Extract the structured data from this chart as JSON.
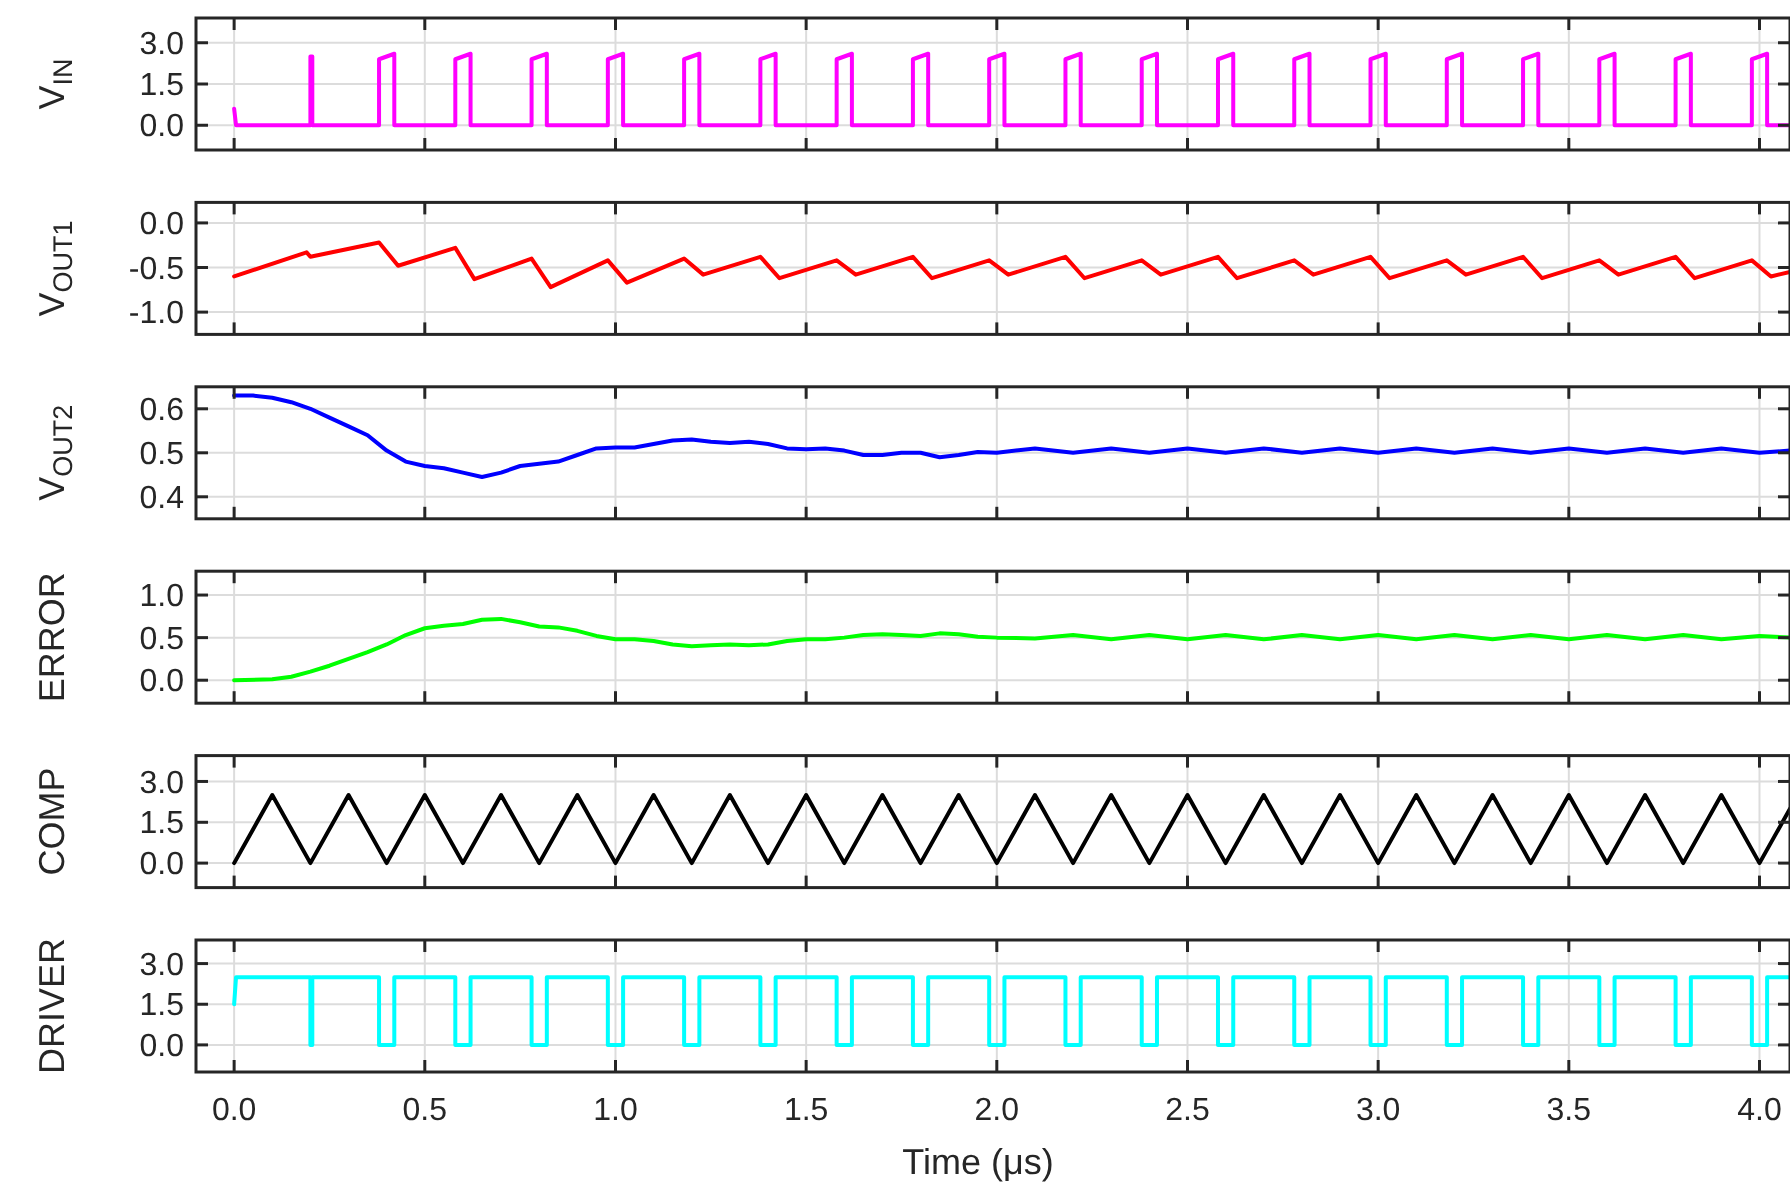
{
  "chart_data": [
    {
      "type": "line",
      "ylabel": "V$_{IN}$",
      "grid": true,
      "tick_labels": "y",
      "xlim": [
        -0.1,
        4.08
      ],
      "ylim": [
        -0.9,
        3.9
      ],
      "xticks": [
        {
          "value": 0,
          "label": null
        },
        {
          "value": 0.5,
          "label": null
        },
        {
          "value": 1,
          "label": null
        },
        {
          "value": 1.5,
          "label": null
        },
        {
          "value": 2,
          "label": null
        },
        {
          "value": 2.5,
          "label": null
        },
        {
          "value": 3,
          "label": null
        },
        {
          "value": 3.5,
          "label": null
        },
        {
          "value": 4,
          "label": null
        }
      ],
      "yticks": [
        {
          "value": 0,
          "label": "0.0"
        },
        1.5,
        {
          "value": 3,
          "label": "3.0"
        }
      ],
      "series": [
        {
          "color": "#ff00ff",
          "x": [
            0,
            0.005,
            0.2,
            0.2,
            0.205,
            0.205,
            0.38,
            0.38,
            0.42,
            0.42,
            0.58,
            0.58,
            0.62,
            0.62,
            0.78,
            0.78,
            0.82,
            0.82,
            0.98,
            0.98,
            1.02,
            1.02,
            1.18,
            1.18,
            1.22,
            1.22,
            1.38,
            1.38,
            1.42,
            1.42,
            1.58,
            1.58,
            1.62,
            1.62,
            1.78,
            1.78,
            1.82,
            1.82,
            1.98,
            1.98,
            2.02,
            2.02,
            2.18,
            2.18,
            2.22,
            2.22,
            2.38,
            2.38,
            2.42,
            2.42,
            2.58,
            2.58,
            2.62,
            2.62,
            2.78,
            2.78,
            2.82,
            2.82,
            2.98,
            2.98,
            3.02,
            3.02,
            3.18,
            3.18,
            3.22,
            3.22,
            3.38,
            3.38,
            3.42,
            3.42,
            3.58,
            3.58,
            3.62,
            3.62,
            3.78,
            3.78,
            3.82,
            3.82,
            3.98,
            3.98,
            4.02,
            4.02,
            4.08
          ],
          "values": [
            0.6,
            0,
            0,
            2.5,
            2.5,
            0,
            0,
            2.4,
            2.6,
            0,
            0,
            2.4,
            2.6,
            0,
            0,
            2.4,
            2.6,
            0,
            0,
            2.4,
            2.6,
            0,
            0,
            2.4,
            2.6,
            0,
            0,
            2.4,
            2.6,
            0,
            0,
            2.4,
            2.6,
            0,
            0,
            2.4,
            2.6,
            0,
            0,
            2.4,
            2.6,
            0,
            0,
            2.4,
            2.6,
            0,
            0,
            2.4,
            2.6,
            0,
            0,
            2.4,
            2.6,
            0,
            0,
            2.4,
            2.6,
            0,
            0,
            2.4,
            2.6,
            0,
            0,
            2.4,
            2.6,
            0,
            0,
            2.4,
            2.6,
            0,
            0,
            2.4,
            2.6,
            0,
            0,
            2.4,
            2.6,
            0,
            0,
            2.4,
            2.6,
            0,
            0
          ]
        }
      ]
    },
    {
      "type": "line",
      "ylabel": "V$_{OUT1}$",
      "grid": true,
      "tick_labels": "y",
      "xlim": [
        -0.1,
        4.08
      ],
      "ylim": [
        -1.25,
        0.23
      ],
      "xticks": [
        {
          "value": 0,
          "label": null
        },
        {
          "value": 0.5,
          "label": null
        },
        {
          "value": 1,
          "label": null
        },
        {
          "value": 1.5,
          "label": null
        },
        {
          "value": 2,
          "label": null
        },
        {
          "value": 2.5,
          "label": null
        },
        {
          "value": 3,
          "label": null
        },
        {
          "value": 3.5,
          "label": null
        },
        {
          "value": 4,
          "label": null
        }
      ],
      "yticks": [
        {
          "value": -1,
          "label": "-1.0"
        },
        -0.5,
        {
          "value": 0,
          "label": "0.0"
        }
      ],
      "series": [
        {
          "color": "#ff0000",
          "x": [
            0,
            0.19,
            0.2,
            0.38,
            0.43,
            0.58,
            0.63,
            0.78,
            0.83,
            0.98,
            1.03,
            1.18,
            1.23,
            1.38,
            1.43,
            1.58,
            1.63,
            1.78,
            1.83,
            1.98,
            2.03,
            2.18,
            2.23,
            2.38,
            2.43,
            2.58,
            2.63,
            2.78,
            2.83,
            2.98,
            3.03,
            3.18,
            3.23,
            3.38,
            3.43,
            3.58,
            3.63,
            3.78,
            3.83,
            3.98,
            4.03,
            4.08
          ],
          "values": [
            -0.6,
            -0.33,
            -0.38,
            -0.22,
            -0.48,
            -0.28,
            -0.63,
            -0.4,
            -0.72,
            -0.42,
            -0.67,
            -0.4,
            -0.58,
            -0.38,
            -0.62,
            -0.42,
            -0.58,
            -0.38,
            -0.62,
            -0.42,
            -0.58,
            -0.38,
            -0.62,
            -0.42,
            -0.58,
            -0.38,
            -0.62,
            -0.42,
            -0.58,
            -0.38,
            -0.62,
            -0.42,
            -0.58,
            -0.38,
            -0.62,
            -0.42,
            -0.58,
            -0.38,
            -0.62,
            -0.42,
            -0.6,
            -0.55
          ]
        }
      ]
    },
    {
      "type": "line",
      "ylabel": "V$_{OUT2}$",
      "grid": true,
      "tick_labels": "y",
      "xlim": [
        -0.1,
        4.08
      ],
      "ylim": [
        0.35,
        0.65
      ],
      "xticks": [
        {
          "value": 0,
          "label": null
        },
        {
          "value": 0.5,
          "label": null
        },
        {
          "value": 1,
          "label": null
        },
        {
          "value": 1.5,
          "label": null
        },
        {
          "value": 2,
          "label": null
        },
        {
          "value": 2.5,
          "label": null
        },
        {
          "value": 3,
          "label": null
        },
        {
          "value": 3.5,
          "label": null
        },
        {
          "value": 4,
          "label": null
        }
      ],
      "yticks": [
        0.4,
        0.5,
        0.6
      ],
      "series": [
        {
          "color": "#0000ff",
          "x": [
            0,
            0.05,
            0.1,
            0.15,
            0.2,
            0.25,
            0.3,
            0.35,
            0.4,
            0.45,
            0.5,
            0.55,
            0.6,
            0.65,
            0.7,
            0.75,
            0.8,
            0.85,
            0.9,
            0.95,
            1,
            1.05,
            1.1,
            1.15,
            1.2,
            1.25,
            1.3,
            1.35,
            1.4,
            1.45,
            1.5,
            1.55,
            1.6,
            1.65,
            1.7,
            1.75,
            1.8,
            1.85,
            1.9,
            1.95,
            2,
            2.1,
            2.2,
            2.3,
            2.4,
            2.5,
            2.6,
            2.7,
            2.8,
            2.9,
            3,
            3.1,
            3.2,
            3.3,
            3.4,
            3.5,
            3.6,
            3.7,
            3.8,
            3.9,
            4,
            4.08
          ],
          "values": [
            0.63,
            0.63,
            0.625,
            0.615,
            0.6,
            0.58,
            0.56,
            0.54,
            0.505,
            0.48,
            0.47,
            0.465,
            0.455,
            0.445,
            0.455,
            0.47,
            0.475,
            0.48,
            0.495,
            0.51,
            0.512,
            0.512,
            0.52,
            0.528,
            0.53,
            0.525,
            0.522,
            0.525,
            0.52,
            0.51,
            0.508,
            0.51,
            0.505,
            0.495,
            0.495,
            0.5,
            0.5,
            0.49,
            0.495,
            0.502,
            0.5,
            0.51,
            0.5,
            0.51,
            0.5,
            0.51,
            0.5,
            0.51,
            0.5,
            0.51,
            0.5,
            0.51,
            0.5,
            0.51,
            0.5,
            0.51,
            0.5,
            0.51,
            0.5,
            0.51,
            0.5,
            0.505
          ]
        }
      ]
    },
    {
      "type": "line",
      "ylabel": "ERROR",
      "grid": true,
      "tick_labels": "y",
      "xlim": [
        -0.1,
        4.08
      ],
      "ylim": [
        -0.27,
        1.28
      ],
      "xticks": [
        {
          "value": 0,
          "label": null
        },
        {
          "value": 0.5,
          "label": null
        },
        {
          "value": 1,
          "label": null
        },
        {
          "value": 1.5,
          "label": null
        },
        {
          "value": 2,
          "label": null
        },
        {
          "value": 2.5,
          "label": null
        },
        {
          "value": 3,
          "label": null
        },
        {
          "value": 3.5,
          "label": null
        },
        {
          "value": 4,
          "label": null
        }
      ],
      "yticks": [
        {
          "value": 0,
          "label": "0.0"
        },
        0.5,
        {
          "value": 1,
          "label": "1.0"
        }
      ],
      "series": [
        {
          "color": "#00ff00",
          "x": [
            0,
            0.1,
            0.15,
            0.2,
            0.25,
            0.3,
            0.35,
            0.4,
            0.45,
            0.5,
            0.55,
            0.6,
            0.65,
            0.7,
            0.75,
            0.8,
            0.85,
            0.9,
            0.95,
            1,
            1.05,
            1.1,
            1.15,
            1.2,
            1.25,
            1.3,
            1.35,
            1.4,
            1.45,
            1.5,
            1.55,
            1.6,
            1.65,
            1.7,
            1.75,
            1.8,
            1.85,
            1.9,
            1.95,
            2,
            2.1,
            2.2,
            2.3,
            2.4,
            2.5,
            2.6,
            2.7,
            2.8,
            2.9,
            3,
            3.1,
            3.2,
            3.3,
            3.4,
            3.5,
            3.6,
            3.7,
            3.8,
            3.9,
            4,
            4.08
          ],
          "values": [
            0,
            0.01,
            0.04,
            0.1,
            0.17,
            0.25,
            0.33,
            0.42,
            0.53,
            0.61,
            0.64,
            0.66,
            0.71,
            0.72,
            0.68,
            0.63,
            0.62,
            0.58,
            0.52,
            0.48,
            0.48,
            0.46,
            0.42,
            0.4,
            0.41,
            0.42,
            0.41,
            0.42,
            0.46,
            0.48,
            0.48,
            0.5,
            0.53,
            0.54,
            0.53,
            0.52,
            0.55,
            0.54,
            0.51,
            0.5,
            0.49,
            0.53,
            0.48,
            0.53,
            0.48,
            0.53,
            0.48,
            0.53,
            0.48,
            0.53,
            0.48,
            0.53,
            0.48,
            0.53,
            0.48,
            0.53,
            0.48,
            0.53,
            0.48,
            0.52,
            0.5
          ]
        }
      ]
    },
    {
      "type": "line",
      "ylabel": "COMP",
      "grid": true,
      "tick_labels": "y",
      "xlim": [
        -0.1,
        4.08
      ],
      "ylim": [
        -0.9,
        3.95
      ],
      "xticks": [
        {
          "value": 0,
          "label": null
        },
        {
          "value": 0.5,
          "label": null
        },
        {
          "value": 1,
          "label": null
        },
        {
          "value": 1.5,
          "label": null
        },
        {
          "value": 2,
          "label": null
        },
        {
          "value": 2.5,
          "label": null
        },
        {
          "value": 3,
          "label": null
        },
        {
          "value": 3.5,
          "label": null
        },
        {
          "value": 4,
          "label": null
        }
      ],
      "yticks": [
        {
          "value": 0,
          "label": "0.0"
        },
        1.5,
        {
          "value": 3,
          "label": "3.0"
        }
      ],
      "series": [
        {
          "color": "#000000",
          "x": [
            0,
            0.1,
            0.2,
            0.3,
            0.4,
            0.5,
            0.6,
            0.7,
            0.8,
            0.9,
            1,
            1.1,
            1.2,
            1.3,
            1.4,
            1.5,
            1.6,
            1.7,
            1.8,
            1.9,
            2,
            2.1,
            2.2,
            2.3,
            2.4,
            2.5,
            2.6,
            2.7,
            2.8,
            2.9,
            3,
            3.1,
            3.2,
            3.3,
            3.4,
            3.5,
            3.6,
            3.7,
            3.8,
            3.9,
            4,
            4.08
          ],
          "values": [
            0,
            2.5,
            0,
            2.5,
            0,
            2.5,
            0,
            2.5,
            0,
            2.5,
            0,
            2.5,
            0,
            2.5,
            0,
            2.5,
            0,
            2.5,
            0,
            2.5,
            0,
            2.5,
            0,
            2.5,
            0,
            2.5,
            0,
            2.5,
            0,
            2.5,
            0,
            2.5,
            0,
            2.5,
            0,
            2.5,
            0,
            2.5,
            0,
            2.5,
            0,
            2
          ]
        }
      ]
    },
    {
      "type": "line",
      "ylabel": "DRIVER",
      "xlabel": "Time (μs)",
      "grid": true,
      "xlim": [
        -0.1,
        4.08
      ],
      "ylim": [
        -1,
        3.87
      ],
      "xticks": [
        {
          "value": 0,
          "label": "0.0"
        },
        {
          "value": 0.5,
          "label": "0.5"
        },
        {
          "value": 1,
          "label": "1.0"
        },
        {
          "value": 1.5,
          "label": "1.5"
        },
        {
          "value": 2,
          "label": "2.0"
        },
        {
          "value": 2.5,
          "label": "2.5"
        },
        {
          "value": 3,
          "label": "3.0"
        },
        {
          "value": 3.5,
          "label": "3.5"
        },
        {
          "value": 4,
          "label": "4.0"
        }
      ],
      "yticks": [
        {
          "value": 0,
          "label": "0.0"
        },
        1.5,
        {
          "value": 3,
          "label": "3.0"
        }
      ],
      "series": [
        {
          "color": "#00ffff",
          "x": [
            0,
            0.005,
            0.2,
            0.2,
            0.205,
            0.205,
            0.38,
            0.38,
            0.42,
            0.42,
            0.58,
            0.58,
            0.62,
            0.62,
            0.78,
            0.78,
            0.82,
            0.82,
            0.98,
            0.98,
            1.02,
            1.02,
            1.18,
            1.18,
            1.22,
            1.22,
            1.38,
            1.38,
            1.42,
            1.42,
            1.58,
            1.58,
            1.62,
            1.62,
            1.78,
            1.78,
            1.82,
            1.82,
            1.98,
            1.98,
            2.02,
            2.02,
            2.18,
            2.18,
            2.22,
            2.22,
            2.38,
            2.38,
            2.42,
            2.42,
            2.58,
            2.58,
            2.62,
            2.62,
            2.78,
            2.78,
            2.82,
            2.82,
            2.98,
            2.98,
            3.02,
            3.02,
            3.18,
            3.18,
            3.22,
            3.22,
            3.38,
            3.38,
            3.42,
            3.42,
            3.58,
            3.58,
            3.62,
            3.62,
            3.78,
            3.78,
            3.82,
            3.82,
            3.98,
            3.98,
            4.02,
            4.02,
            4.08
          ],
          "values": [
            1.5,
            2.5,
            2.5,
            0,
            0,
            2.5,
            2.5,
            0,
            0,
            2.5,
            2.5,
            0,
            0,
            2.5,
            2.5,
            0,
            0,
            2.5,
            2.5,
            0,
            0,
            2.5,
            2.5,
            0,
            0,
            2.5,
            2.5,
            0,
            0,
            2.5,
            2.5,
            0,
            0,
            2.5,
            2.5,
            0,
            0,
            2.5,
            2.5,
            0,
            0,
            2.5,
            2.5,
            0,
            0,
            2.5,
            2.5,
            0,
            0,
            2.5,
            2.5,
            0,
            0,
            2.5,
            2.5,
            0,
            0,
            2.5,
            2.5,
            0,
            0,
            2.5,
            2.5,
            0,
            0,
            2.5,
            2.5,
            0,
            0,
            2.5,
            2.5,
            0,
            0,
            2.5,
            2.5,
            0,
            0,
            2.5,
            2.5,
            0,
            0,
            2.5,
            2.5
          ]
        }
      ]
    }
  ]
}
